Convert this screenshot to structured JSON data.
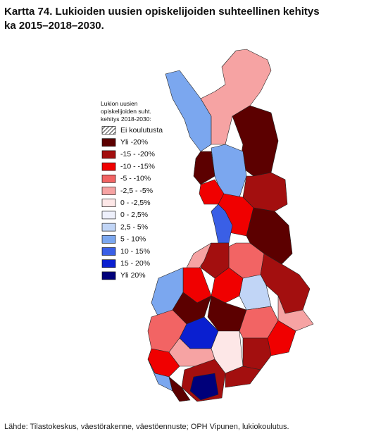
{
  "header": {
    "title_lines": [
      "Kartta 74. Lukioiden uusien opiskelijoiden suhteellinen kehitys",
      "ka 2015–2018–2030."
    ]
  },
  "legend": {
    "heading_lines": [
      "Lukion uusien",
      "opiskelijoiden suht.",
      "kehitys 2018-2030:"
    ],
    "items": [
      {
        "label": "Ei koulutusta",
        "pattern": "hatch"
      },
      {
        "label": "Yli -20%",
        "color": "#5c0000"
      },
      {
        "label": "-15 - -20%",
        "color": "#a30f0f"
      },
      {
        "label": "-10 - -15%",
        "color": "#f00000"
      },
      {
        "label": "-5 - -10%",
        "color": "#f26464"
      },
      {
        "label": "-2,5 - -5%",
        "color": "#f6a3a3"
      },
      {
        "label": "0 - -2,5%",
        "color": "#fde7e7"
      },
      {
        "label": "0 - 2,5%",
        "color": "#eef0fb"
      },
      {
        "label": "2,5 - 5%",
        "color": "#c1d5f6"
      },
      {
        "label": "5 - 10%",
        "color": "#7ba7ef"
      },
      {
        "label": "10 - 15%",
        "color": "#3a5fe6"
      },
      {
        "label": "15 - 20%",
        "color": "#0a1fd0"
      },
      {
        "label": "Yli 20%",
        "color": "#00007a"
      }
    ]
  },
  "footer": {
    "source": "Lähde: Tilastokeskus, väestörakenne, väestöennuste; OPH Vipunen, lukiokoulutus."
  }
}
